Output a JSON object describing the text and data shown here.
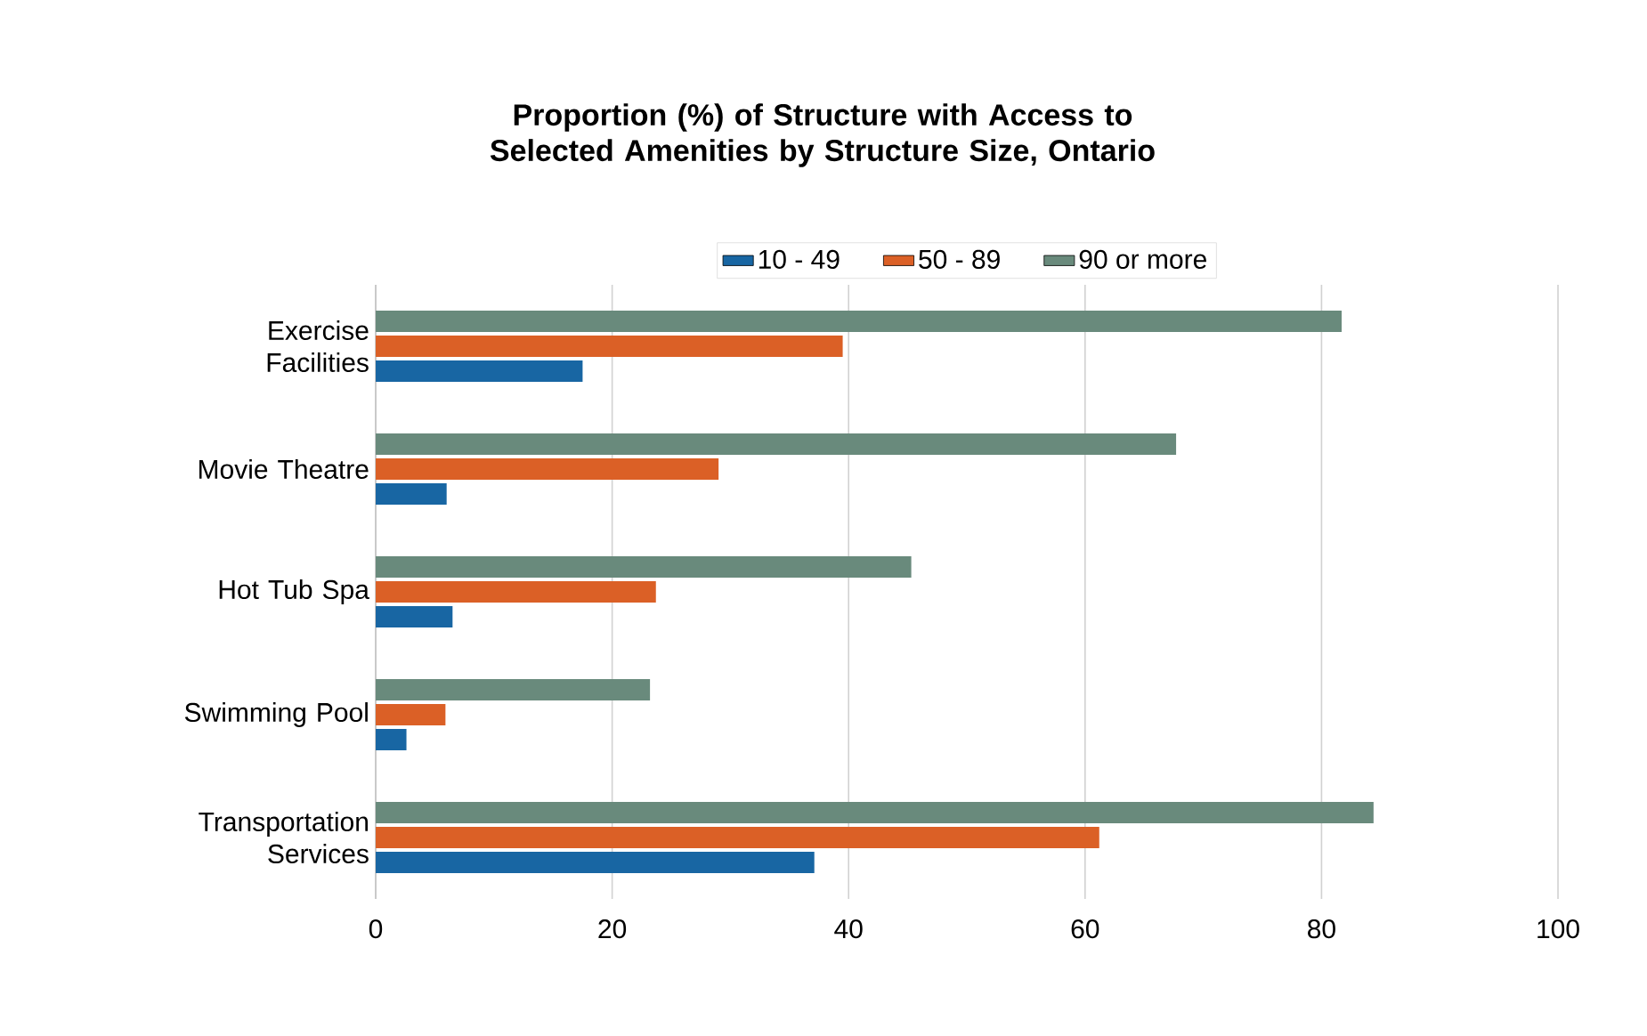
{
  "chart_data": {
    "type": "bar",
    "orientation": "horizontal",
    "title": "Proportion (%) of Structure with Access to Selected Amenities by Structure Size, Ontario",
    "categories": [
      "Exercise Facilities",
      "Movie Theatre",
      "Hot Tub Spa",
      "Swimming Pool",
      "Transportation Services"
    ],
    "series": [
      {
        "name": "10 - 49",
        "color": "#1866a3",
        "values": [
          17.5,
          6.0,
          6.5,
          2.6,
          37.1
        ]
      },
      {
        "name": "50 - 89",
        "color": "#db6026",
        "values": [
          39.5,
          29.0,
          23.7,
          5.9,
          61.2
        ]
      },
      {
        "name": "90 or more",
        "color": "#698a7c",
        "values": [
          81.7,
          67.7,
          45.3,
          23.2,
          84.4
        ]
      }
    ],
    "xlim": [
      0,
      100
    ],
    "xticks": [
      0,
      20,
      40,
      60,
      80,
      100
    ],
    "grid": "x",
    "legend": "top"
  }
}
